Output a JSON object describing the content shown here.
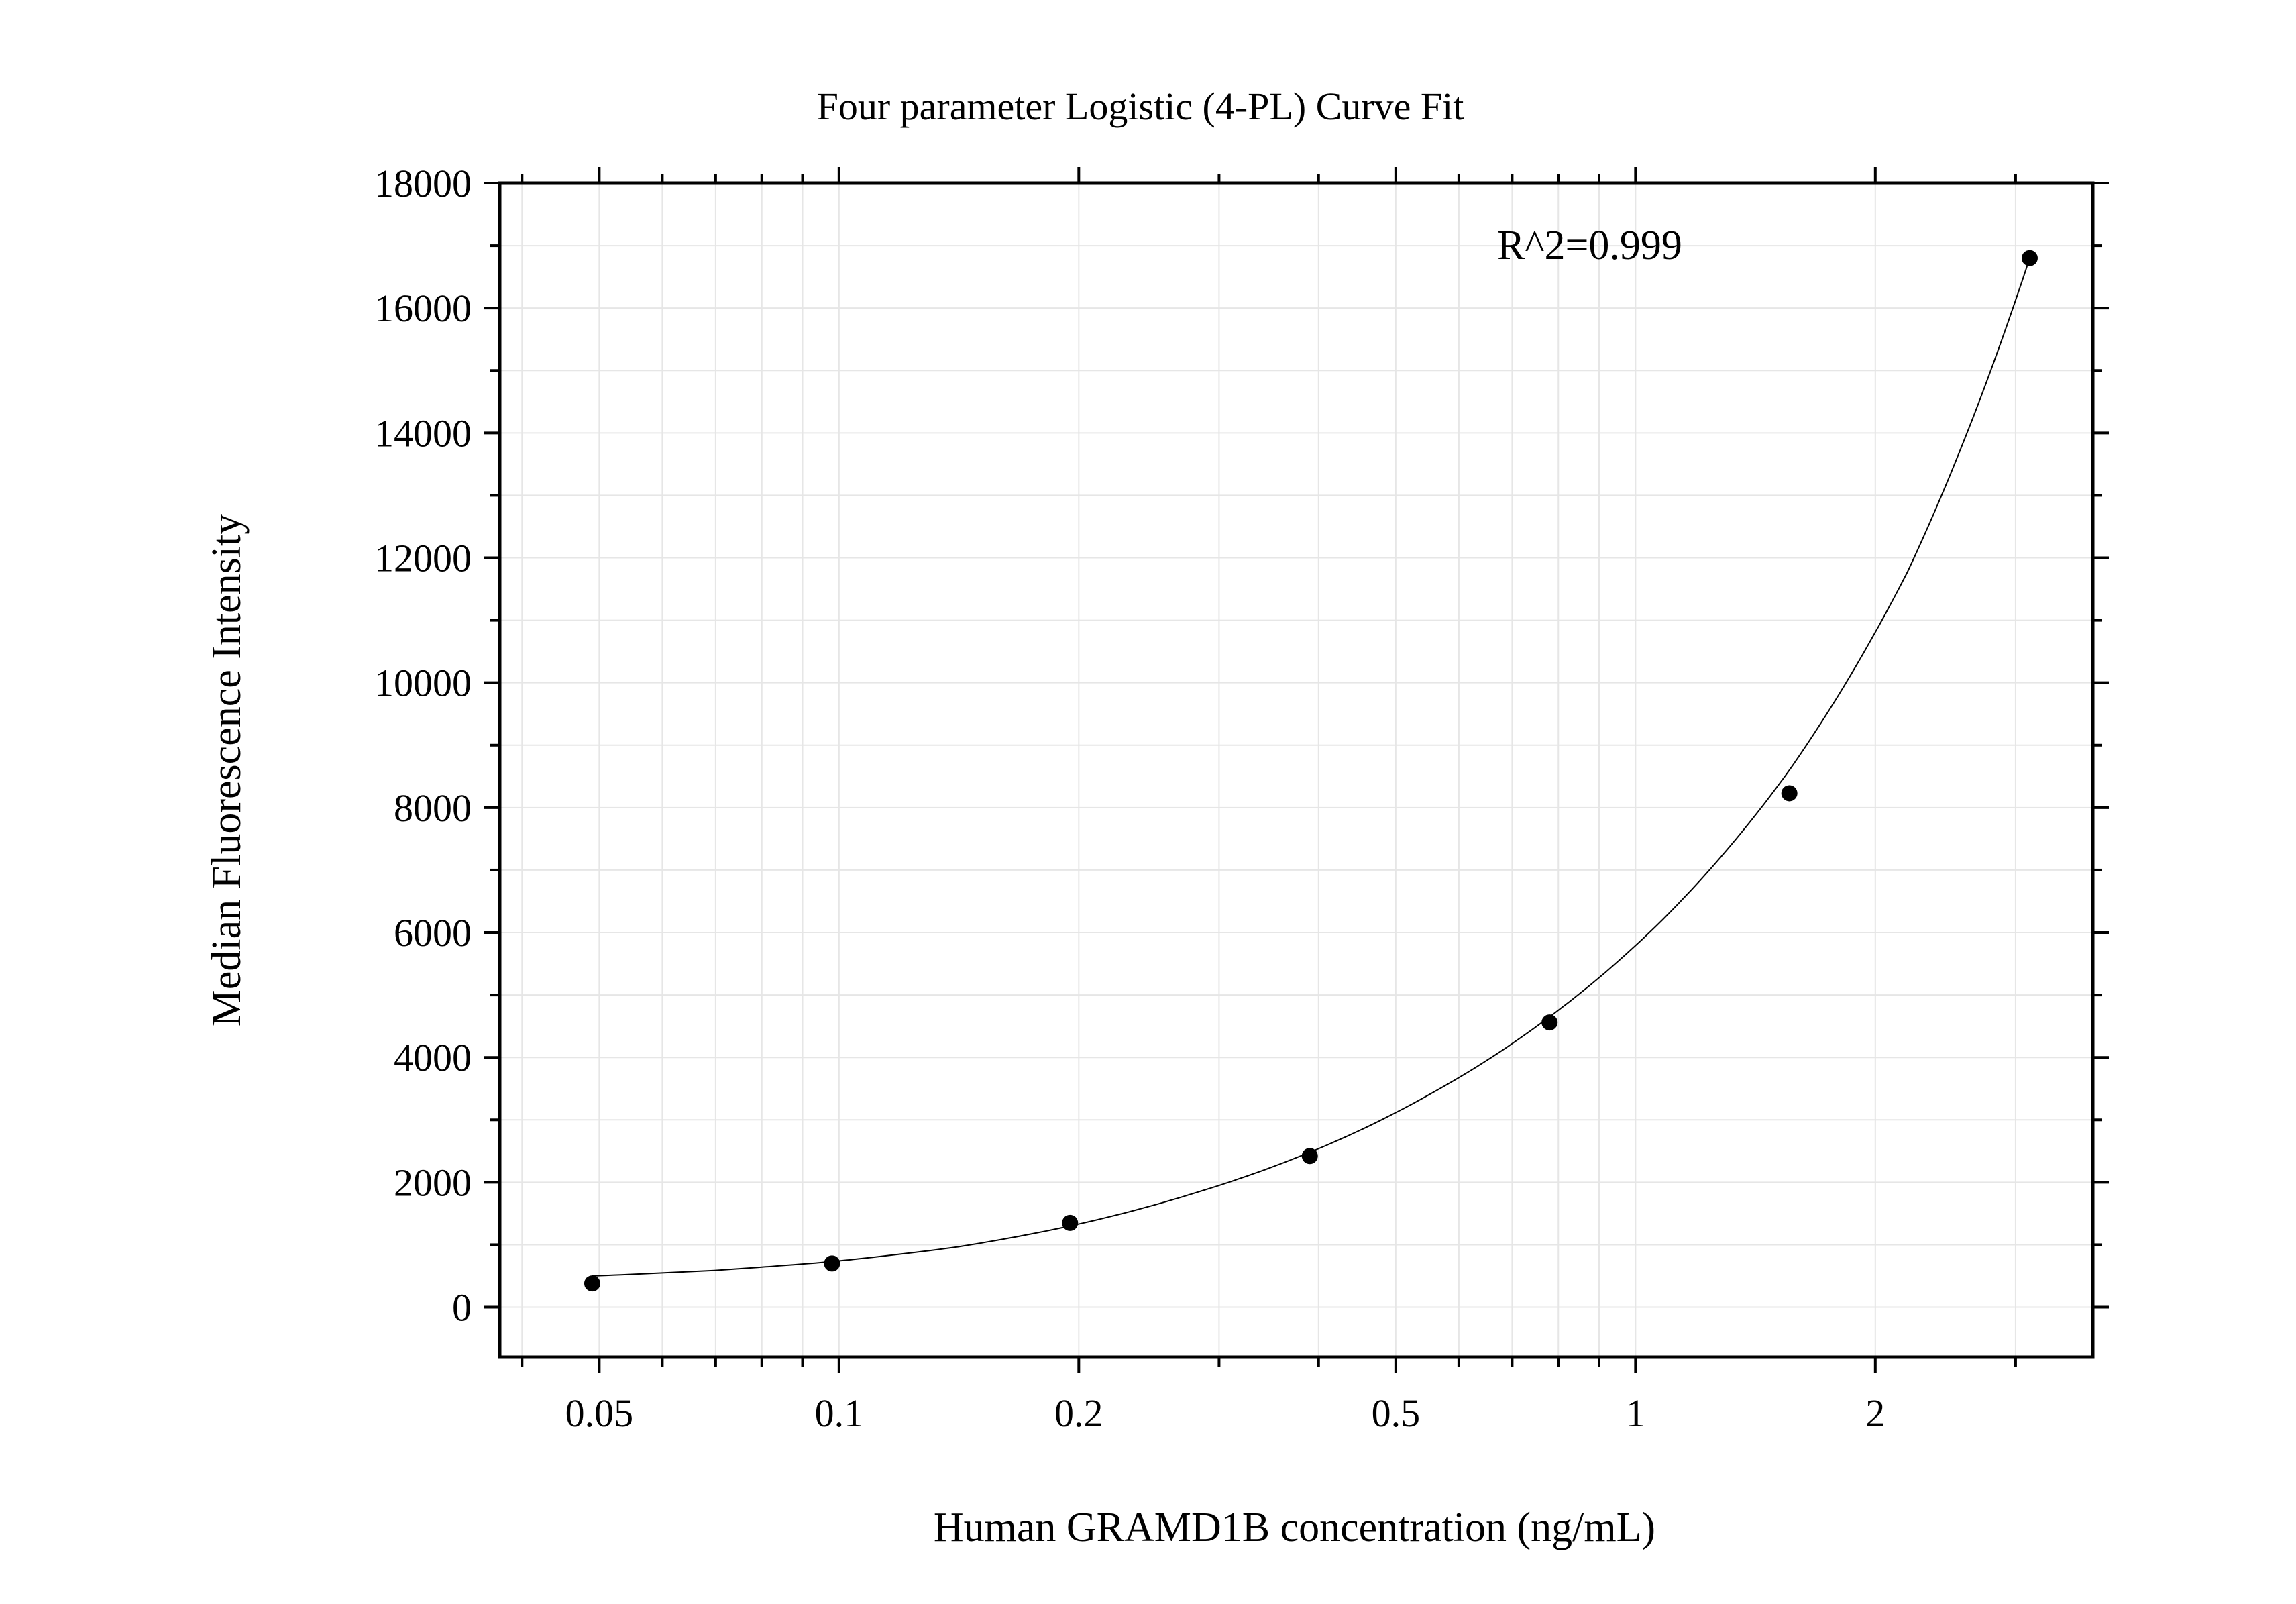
{
  "chart_data": {
    "type": "scatter",
    "title": "Four parameter Logistic (4-PL) Curve Fit",
    "xlabel": "Human GRAMD1B concentration (ng/mL)",
    "ylabel": "Median Fluorescence Intensity",
    "annotation": "R^2=0.999",
    "x_scale": "log",
    "xlim": [
      0.0375,
      3.75
    ],
    "ylim": [
      -800,
      18000
    ],
    "x_tick_values": [
      0.05,
      0.1,
      0.2,
      0.5,
      1,
      2
    ],
    "x_tick_labels": [
      "0.05",
      "0.1",
      "0.2",
      "0.5",
      "1",
      "2"
    ],
    "y_tick_values": [
      0,
      2000,
      4000,
      6000,
      8000,
      10000,
      12000,
      14000,
      16000,
      18000
    ],
    "y_tick_labels": [
      "0",
      "2000",
      "4000",
      "6000",
      "8000",
      "10000",
      "12000",
      "14000",
      "16000",
      "18000"
    ],
    "grid": true,
    "series": [
      {
        "marker": "circle",
        "x": [
          0.049,
          0.098,
          0.195,
          0.39,
          0.78,
          1.56,
          3.125
        ],
        "y": [
          380,
          700,
          1350,
          2420,
          4560,
          8230,
          16800
        ]
      }
    ],
    "fit_curve": {
      "x": [
        0.049,
        0.07,
        0.098,
        0.14,
        0.195,
        0.28,
        0.39,
        0.55,
        0.78,
        1.1,
        1.56,
        2.2,
        3.125
      ],
      "y": [
        500,
        590,
        730,
        960,
        1300,
        1830,
        2480,
        3400,
        4650,
        6300,
        8600,
        11800,
        16800
      ]
    }
  }
}
